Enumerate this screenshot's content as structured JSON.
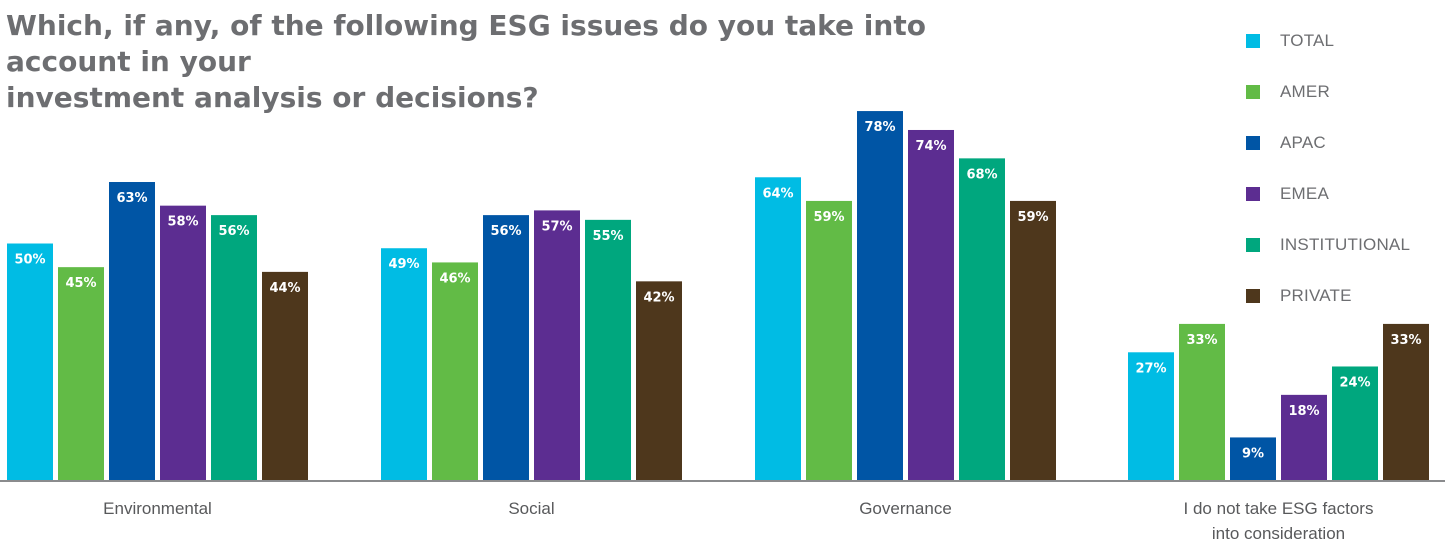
{
  "title_lines": [
    "Which, if any, of the following ESG issues do you take into account in your",
    "investment analysis or decisions?"
  ],
  "chart_data": {
    "type": "bar",
    "title": "Which, if any, of the following ESG issues do you take into account in your investment analysis or decisions?",
    "categories": [
      [
        "Environmental"
      ],
      [
        "Social"
      ],
      [
        "Governance"
      ],
      [
        "I do not take ESG factors",
        "into consideration"
      ]
    ],
    "series": [
      {
        "name": "TOTAL",
        "color": "#00bce4",
        "values": [
          50,
          49,
          64,
          27
        ],
        "labels": [
          "50%",
          "49%",
          "64%",
          "27%"
        ]
      },
      {
        "name": "AMER",
        "color": "#62bb46",
        "values": [
          45,
          46,
          59,
          33
        ],
        "labels": [
          "45%",
          "46%",
          "59%",
          "33%"
        ]
      },
      {
        "name": "APAC",
        "color": "#0055a5",
        "values": [
          63,
          56,
          78,
          9
        ],
        "labels": [
          "63%",
          "56%",
          "78%",
          "9%"
        ]
      },
      {
        "name": "EMEA",
        "color": "#5c2d91",
        "values": [
          58,
          57,
          74,
          18
        ],
        "labels": [
          "58%",
          "57%",
          "74%",
          "18%"
        ]
      },
      {
        "name": "INSTITUTIONAL",
        "color": "#00a77e",
        "values": [
          56,
          55,
          68,
          24
        ],
        "labels": [
          "56%",
          "55%",
          "68%",
          "24%"
        ]
      },
      {
        "name": "PRIVATE",
        "color": "#4e371c",
        "values": [
          44,
          42,
          59,
          33
        ],
        "labels": [
          "44%",
          "42%",
          "59%",
          "33%"
        ]
      }
    ],
    "ylim": [
      0,
      80
    ],
    "grid": false,
    "legend": "right"
  }
}
